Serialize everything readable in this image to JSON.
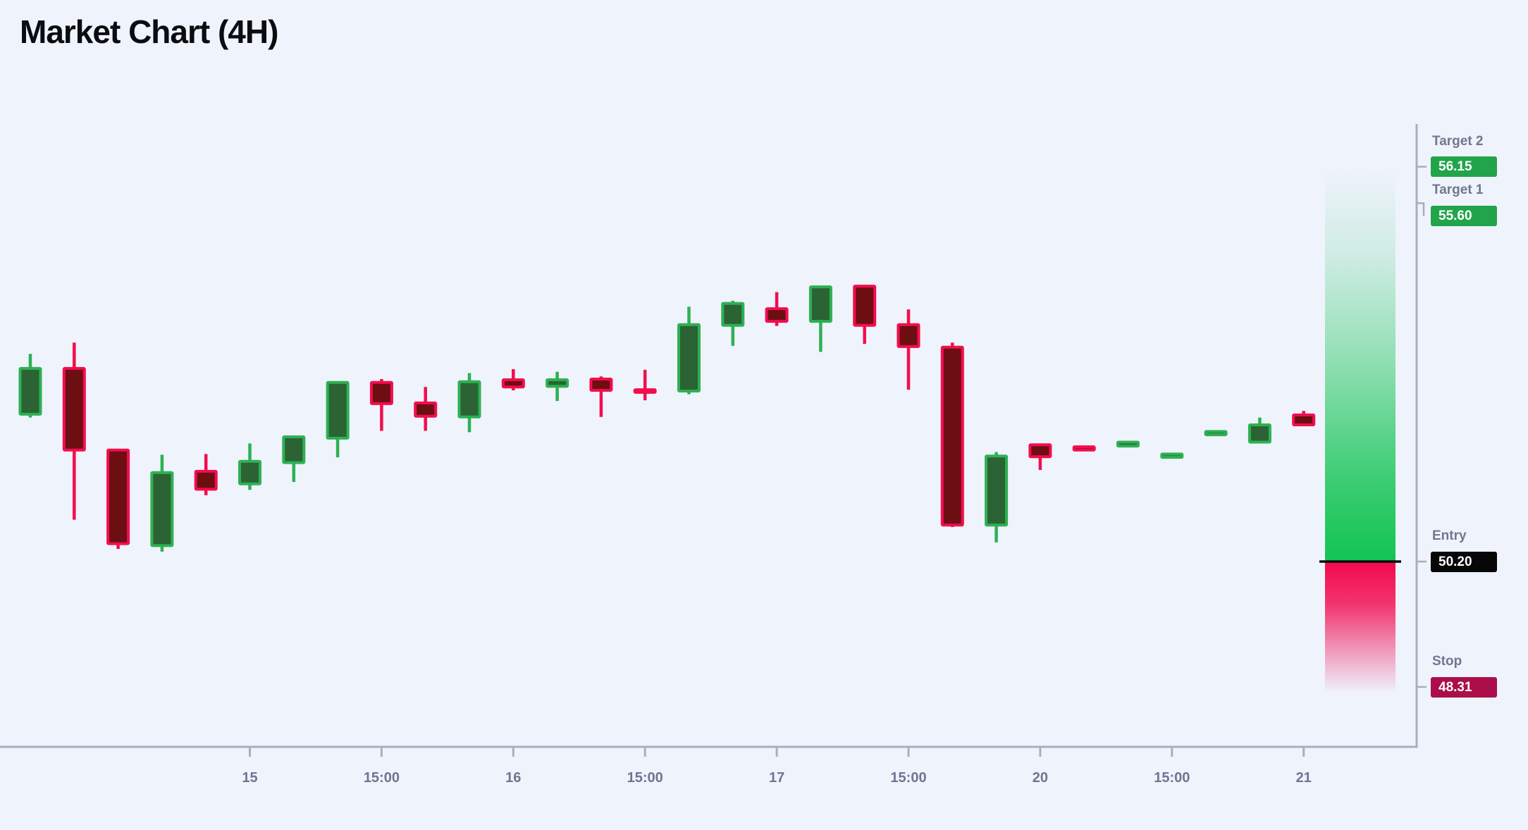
{
  "title": "Market Chart (4H)",
  "colors": {
    "background": "#eff3fc",
    "title_color": "#0a0c10",
    "bull_border": "#2db153",
    "bull_fill": "#2b6334",
    "bear_border": "#f30d4e",
    "bear_fill": "#6d0e13",
    "axis": "#a9aebc",
    "tick_label": "#6f7590",
    "level_label": "#70778f",
    "badge_text": "#ffffff",
    "target_badge_bg": "#22a44b",
    "entry_badge_bg": "#070707",
    "stop_badge_bg": "#ac0e49",
    "zone_green": "#12c452",
    "zone_red": "#f2094e",
    "entry_line": "#0b0b0b"
  },
  "levels": {
    "target2": {
      "label": "Target 2",
      "value": "56.15",
      "price": 56.15
    },
    "target1": {
      "label": "Target 1",
      "value": "55.60",
      "price": 55.6
    },
    "entry": {
      "label": "Entry",
      "value": "50.20",
      "price": 50.2
    },
    "stop": {
      "label": "Stop",
      "value": "48.31",
      "price": 48.31
    }
  },
  "chart_data": {
    "type": "candlestick",
    "title": "Market Chart (4H)",
    "timeframe": "4H",
    "x_ticks": [
      {
        "index": 5,
        "label": "15"
      },
      {
        "index": 8,
        "label": "15:00"
      },
      {
        "index": 11,
        "label": "16"
      },
      {
        "index": 14,
        "label": "15:00"
      },
      {
        "index": 17,
        "label": "17"
      },
      {
        "index": 20,
        "label": "15:00"
      },
      {
        "index": 23,
        "label": "20"
      },
      {
        "index": 26,
        "label": "15:00"
      },
      {
        "index": 29,
        "label": "21"
      }
    ],
    "price_levels": {
      "entry": 50.2,
      "stop": 48.31,
      "target1": 55.6,
      "target2": 56.15
    },
    "ylim": [
      48.0,
      56.5
    ],
    "candles": [
      {
        "o": 52.42,
        "h": 53.33,
        "l": 52.37,
        "c": 53.11
      },
      {
        "o": 53.11,
        "h": 53.5,
        "l": 50.83,
        "c": 51.88
      },
      {
        "o": 51.88,
        "h": 51.88,
        "l": 50.39,
        "c": 50.47
      },
      {
        "o": 50.44,
        "h": 51.81,
        "l": 50.35,
        "c": 51.54
      },
      {
        "o": 51.56,
        "h": 51.82,
        "l": 51.2,
        "c": 51.29
      },
      {
        "o": 51.37,
        "h": 51.98,
        "l": 51.28,
        "c": 51.71
      },
      {
        "o": 51.69,
        "h": 52.1,
        "l": 51.4,
        "c": 52.08
      },
      {
        "o": 52.06,
        "h": 52.92,
        "l": 51.77,
        "c": 52.9
      },
      {
        "o": 52.9,
        "h": 52.95,
        "l": 52.17,
        "c": 52.58
      },
      {
        "o": 52.59,
        "h": 52.83,
        "l": 52.17,
        "c": 52.39
      },
      {
        "o": 52.38,
        "h": 53.04,
        "l": 52.15,
        "c": 52.91
      },
      {
        "o": 52.94,
        "h": 53.1,
        "l": 52.78,
        "c": 52.83
      },
      {
        "o": 52.84,
        "h": 53.06,
        "l": 52.62,
        "c": 52.94
      },
      {
        "o": 52.95,
        "h": 52.99,
        "l": 52.38,
        "c": 52.78
      },
      {
        "o": 52.79,
        "h": 53.09,
        "l": 52.63,
        "c": 52.75
      },
      {
        "o": 52.77,
        "h": 54.04,
        "l": 52.72,
        "c": 53.77
      },
      {
        "o": 53.76,
        "h": 54.13,
        "l": 53.45,
        "c": 54.09
      },
      {
        "o": 54.01,
        "h": 54.26,
        "l": 53.75,
        "c": 53.82
      },
      {
        "o": 53.82,
        "h": 54.36,
        "l": 53.36,
        "c": 54.34
      },
      {
        "o": 54.35,
        "h": 54.37,
        "l": 53.48,
        "c": 53.76
      },
      {
        "o": 53.77,
        "h": 54.0,
        "l": 52.79,
        "c": 53.44
      },
      {
        "o": 53.43,
        "h": 53.5,
        "l": 50.72,
        "c": 50.75
      },
      {
        "o": 50.75,
        "h": 51.85,
        "l": 50.49,
        "c": 51.79
      },
      {
        "o": 51.96,
        "h": 51.96,
        "l": 51.58,
        "c": 51.78
      },
      {
        "o": 51.93,
        "h": 51.93,
        "l": 51.88,
        "c": 51.88
      },
      {
        "o": 51.94,
        "h": 52.0,
        "l": 51.94,
        "c": 52.0
      },
      {
        "o": 51.77,
        "h": 51.82,
        "l": 51.77,
        "c": 51.82
      },
      {
        "o": 52.11,
        "h": 52.16,
        "l": 52.11,
        "c": 52.16
      },
      {
        "o": 52.0,
        "h": 52.37,
        "l": 52.0,
        "c": 52.26
      },
      {
        "o": 52.41,
        "h": 52.47,
        "l": 52.26,
        "c": 52.26
      }
    ]
  }
}
